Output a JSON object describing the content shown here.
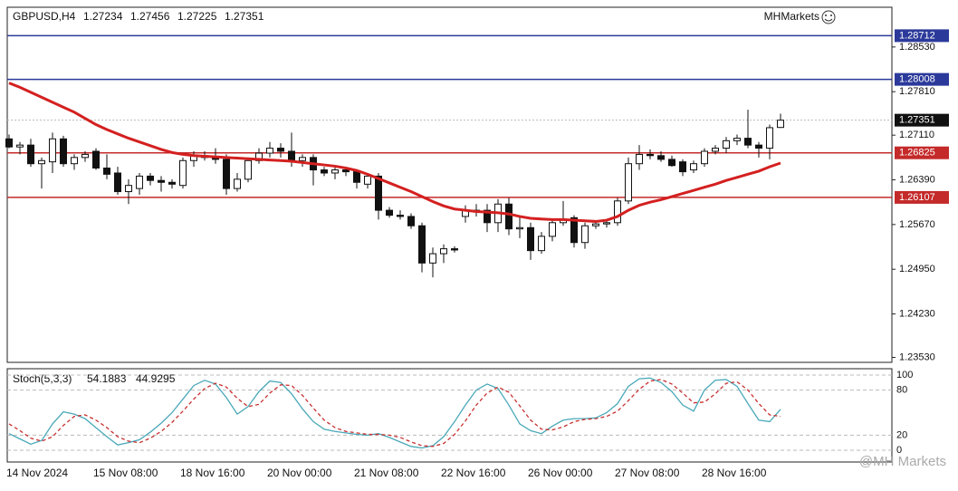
{
  "brand": "MHMarkets",
  "watermark": "@MH Markets",
  "chart_data": [
    {
      "type": "candlestick",
      "symbol": "GBPUSD,H4",
      "categories": [
        "14 Nov 2024",
        null,
        null,
        null,
        null,
        null,
        null,
        null,
        "15 Nov 08:00",
        null,
        null,
        null,
        null,
        null,
        null,
        null,
        "18 Nov 16:00",
        null,
        null,
        null,
        null,
        null,
        null,
        null,
        "20 Nov 00:00",
        null,
        null,
        null,
        null,
        null,
        null,
        null,
        "21 Nov 08:00",
        null,
        null,
        null,
        null,
        null,
        null,
        null,
        "22 Nov 16:00",
        null,
        null,
        null,
        null,
        null,
        null,
        null,
        "26 Nov 00:00",
        null,
        null,
        null,
        null,
        null,
        null,
        null,
        "27 Nov 08:00",
        null,
        null,
        null,
        null,
        null,
        null,
        null,
        "28 Nov 16:00",
        null,
        null,
        null,
        null,
        null,
        null,
        null
      ],
      "open": [
        1.2705,
        1.2692,
        1.2695,
        1.2665,
        1.2668,
        1.2705,
        1.2665,
        1.2675,
        1.2685,
        1.2658,
        1.265,
        1.262,
        1.2625,
        1.2645,
        1.2638,
        1.2635,
        1.263,
        1.267,
        1.2678,
        1.2675,
        1.2672,
        1.2625,
        1.264,
        1.267,
        1.2682,
        1.269,
        1.2685,
        1.267,
        1.2675,
        1.2655,
        1.265,
        1.2655,
        1.2652,
        1.2632,
        1.2645,
        1.259,
        1.2582,
        1.258,
        1.2565,
        1.2505,
        1.252,
        1.2528,
        1.258,
        1.259,
        1.259,
        1.257,
        1.26,
        1.256,
        1.2562,
        1.2525,
        1.2548,
        1.257,
        1.2578,
        1.2538,
        1.2565,
        1.2568,
        1.257,
        1.2605,
        1.2665,
        1.268,
        1.2678,
        1.2672,
        1.2668,
        1.2655,
        1.2665,
        1.2685,
        1.269,
        1.2702,
        1.2706,
        1.2695,
        1.269,
        1.27234
      ],
      "high": [
        1.2712,
        1.27,
        1.2705,
        1.2675,
        1.2715,
        1.271,
        1.268,
        1.2685,
        1.269,
        1.268,
        1.266,
        1.264,
        1.265,
        1.265,
        1.2645,
        1.264,
        1.2675,
        1.2685,
        1.2685,
        1.269,
        1.268,
        1.265,
        1.2675,
        1.269,
        1.27,
        1.2698,
        1.2715,
        1.268,
        1.268,
        1.266,
        1.266,
        1.266,
        1.2655,
        1.265,
        1.265,
        1.2595,
        1.259,
        1.2585,
        1.257,
        1.253,
        1.2535,
        1.2532,
        1.2598,
        1.26,
        1.26,
        1.2608,
        1.261,
        1.258,
        1.257,
        1.2555,
        1.2575,
        1.2605,
        1.2582,
        1.257,
        1.2572,
        1.2575,
        1.261,
        1.2675,
        1.2695,
        1.2688,
        1.2685,
        1.2678,
        1.2672,
        1.267,
        1.269,
        1.2695,
        1.2708,
        1.2712,
        1.2752,
        1.27,
        1.2728,
        1.27456
      ],
      "low": [
        1.269,
        1.268,
        1.266,
        1.2625,
        1.265,
        1.266,
        1.2655,
        1.2668,
        1.2655,
        1.264,
        1.2615,
        1.26,
        1.2615,
        1.263,
        1.262,
        1.2625,
        1.2625,
        1.266,
        1.267,
        1.2665,
        1.2615,
        1.262,
        1.2635,
        1.2665,
        1.2675,
        1.2675,
        1.266,
        1.266,
        1.263,
        1.2645,
        1.264,
        1.2645,
        1.2625,
        1.2625,
        1.2575,
        1.2578,
        1.2575,
        1.256,
        1.249,
        1.2482,
        1.2505,
        1.2522,
        1.257,
        1.258,
        1.2555,
        1.2555,
        1.255,
        1.2545,
        1.251,
        1.252,
        1.254,
        1.2565,
        1.253,
        1.2528,
        1.256,
        1.2562,
        1.2565,
        1.26,
        1.2655,
        1.2672,
        1.2668,
        1.266,
        1.2645,
        1.265,
        1.266,
        1.268,
        1.2682,
        1.2695,
        1.269,
        1.2675,
        1.2672,
        1.27225
      ],
      "close": [
        1.2692,
        1.2695,
        1.2665,
        1.267,
        1.2705,
        1.2665,
        1.2675,
        1.268,
        1.2658,
        1.2648,
        1.262,
        1.263,
        1.2645,
        1.2638,
        1.2635,
        1.2632,
        1.267,
        1.2678,
        1.2675,
        1.2672,
        1.2625,
        1.264,
        1.267,
        1.2682,
        1.269,
        1.2685,
        1.267,
        1.2675,
        1.2655,
        1.265,
        1.2655,
        1.2652,
        1.2635,
        1.2645,
        1.259,
        1.2582,
        1.258,
        1.2565,
        1.2505,
        1.252,
        1.2528,
        1.2526,
        1.259,
        1.2588,
        1.257,
        1.26,
        1.256,
        1.2562,
        1.2525,
        1.2548,
        1.257,
        1.2575,
        1.2538,
        1.2565,
        1.2568,
        1.257,
        1.2605,
        1.2665,
        1.268,
        1.2678,
        1.2672,
        1.2662,
        1.2652,
        1.2665,
        1.2685,
        1.269,
        1.2702,
        1.2706,
        1.2695,
        1.269,
        1.2723,
        1.27351
      ],
      "ma": {
        "color": "#d42020",
        "values": [
          1.2795,
          1.2788,
          1.278,
          1.2772,
          1.2764,
          1.2756,
          1.2748,
          1.2738,
          1.2728,
          1.272,
          1.2713,
          1.2706,
          1.27,
          1.2694,
          1.2688,
          1.2683,
          1.268,
          1.2678,
          1.2677,
          1.2676,
          1.2675,
          1.2674,
          1.2673,
          1.2672,
          1.2671,
          1.267,
          1.2669,
          1.2667,
          1.2665,
          1.2663,
          1.2661,
          1.2658,
          1.2654,
          1.2648,
          1.2641,
          1.2634,
          1.2627,
          1.262,
          1.2612,
          1.2604,
          1.2597,
          1.2592,
          1.259,
          1.2588,
          1.2587,
          1.2586,
          1.2584,
          1.258,
          1.2577,
          1.2576,
          1.2575,
          1.2575,
          1.2574,
          1.2573,
          1.2572,
          1.2574,
          1.258,
          1.259,
          1.2598,
          1.2603,
          1.2607,
          1.2612,
          1.2617,
          1.2622,
          1.2627,
          1.2632,
          1.2638,
          1.2643,
          1.2648,
          1.2653,
          1.266,
          1.2666
        ]
      },
      "levels": [
        {
          "value": 1.28712,
          "color": "#2b3a9a"
        },
        {
          "value": 1.28008,
          "color": "#2b3a9a"
        },
        {
          "value": 1.26825,
          "color": "#c42a2a"
        },
        {
          "value": 1.26107,
          "color": "#c42a2a"
        }
      ],
      "ylim": [
        1.2345,
        1.2917
      ],
      "yticks": [
        {
          "value": 1.2853,
          "label": "1.28530"
        },
        {
          "value": 1.2781,
          "label": "1.27810"
        },
        {
          "value": 1.2711,
          "label": "1.27110"
        },
        {
          "value": 1.2639,
          "label": "1.26390"
        },
        {
          "value": 1.2567,
          "label": "1.25670"
        },
        {
          "value": 1.2495,
          "label": "1.24950"
        },
        {
          "value": 1.2423,
          "label": "1.24230"
        },
        {
          "value": 1.2353,
          "label": "1.23530"
        }
      ]
    },
    {
      "type": "line",
      "title": "Stoch(5,3,3)",
      "series": [
        {
          "color": "#4aa8b8",
          "dashed": false,
          "values": [
            22,
            15,
            8,
            13,
            35,
            51,
            48,
            42,
            30,
            18,
            7,
            10,
            14,
            24,
            36,
            50,
            68,
            86,
            93,
            88,
            70,
            48,
            58,
            78,
            92,
            90,
            75,
            55,
            38,
            28,
            25,
            23,
            21,
            20,
            22,
            17,
            11,
            5,
            3,
            6,
            18,
            38,
            60,
            80,
            88,
            82,
            60,
            35,
            26,
            22,
            32,
            40,
            42,
            42,
            43,
            50,
            62,
            85,
            95,
            96,
            90,
            78,
            60,
            52,
            80,
            93,
            94,
            85,
            62,
            40,
            38,
            54.1883
          ]
        },
        {
          "color": "#c83030",
          "dashed": true,
          "values": [
            35,
            26,
            16,
            12,
            18,
            33,
            45,
            47,
            40,
            30,
            18,
            12,
            10,
            16,
            25,
            37,
            52,
            68,
            82,
            89,
            84,
            69,
            58,
            61,
            76,
            87,
            86,
            73,
            56,
            40,
            30,
            25,
            23,
            21,
            21,
            20,
            17,
            11,
            6,
            5,
            9,
            21,
            39,
            60,
            76,
            84,
            77,
            59,
            40,
            28,
            27,
            31,
            38,
            41,
            42,
            45,
            52,
            66,
            81,
            92,
            94,
            88,
            76,
            63,
            64,
            75,
            89,
            91,
            80,
            62,
            47,
            44.9295
          ]
        }
      ],
      "ylim": [
        -15.7,
        108.4
      ],
      "yticks": [
        100,
        80,
        20,
        0
      ]
    }
  ]
}
